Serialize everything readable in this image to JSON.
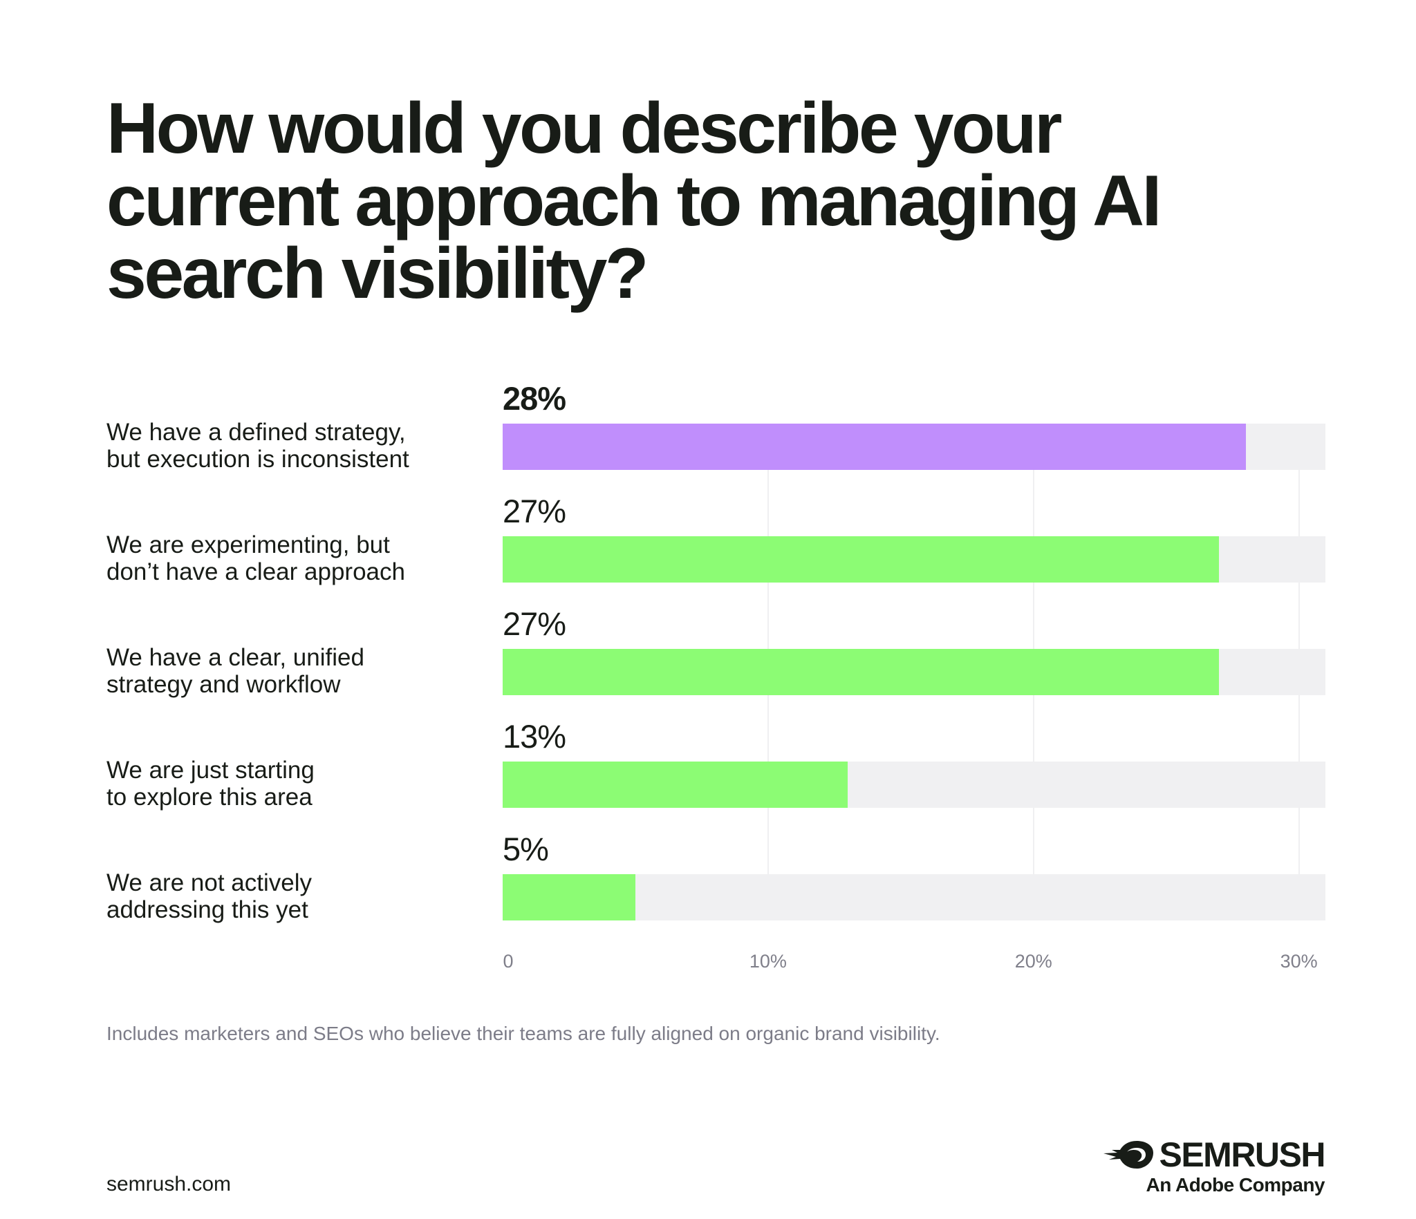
{
  "title": "How would you describe your current approach to managing AI search visibility?",
  "chart_data": {
    "type": "bar",
    "orientation": "horizontal",
    "categories": [
      "We have a defined strategy,\nbut execution is inconsistent",
      "We are experimenting, but\ndon’t have a clear approach",
      "We have a clear, unified\nstrategy and workflow",
      "We are just starting\nto explore this area",
      "We are not actively\naddressing this yet"
    ],
    "values": [
      28,
      27,
      27,
      13,
      5
    ],
    "value_labels": [
      "28%",
      "27%",
      "27%",
      "13%",
      "5%"
    ],
    "xlim": [
      0,
      31
    ],
    "xticks": [
      0,
      10,
      20,
      30
    ],
    "xtick_labels": [
      "0",
      "10%",
      "20%",
      "30%"
    ],
    "grid": true,
    "colors": {
      "highlight": "#c08efc",
      "default": "#8cfc74",
      "track": "#f0f0f2",
      "gridline": "#efeff1"
    },
    "highlight_index": 0
  },
  "footnote": "Includes marketers and SEOs who believe their teams are fully aligned on organic brand visibility.",
  "site": "semrush.com",
  "logo": {
    "word": "SEMRUSH",
    "sub": "An Adobe Company",
    "icon": "semrush-logo-icon"
  }
}
